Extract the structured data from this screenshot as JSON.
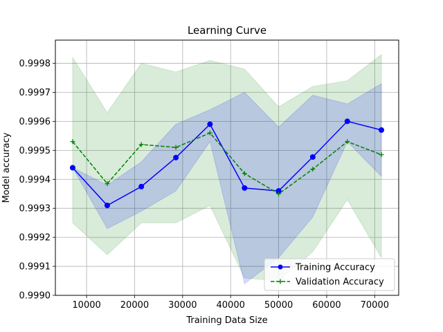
{
  "chart_data": {
    "type": "line",
    "title": "Learning Curve",
    "xlabel": "Training Data Size",
    "ylabel": "Model accuracy",
    "xlim": [
      3500,
      75000
    ],
    "ylim": [
      0.999,
      0.99988
    ],
    "xticks": [
      10000,
      20000,
      30000,
      40000,
      50000,
      60000,
      70000
    ],
    "xtick_labels": [
      "10000",
      "20000",
      "30000",
      "40000",
      "50000",
      "60000",
      "70000"
    ],
    "yticks": [
      0.999,
      0.9991,
      0.9992,
      0.9993,
      0.9994,
      0.9995,
      0.9996,
      0.9997,
      0.9998
    ],
    "ytick_labels": [
      "0.9990",
      "0.9991",
      "0.9992",
      "0.9993",
      "0.9994",
      "0.9995",
      "0.9996",
      "0.9997",
      "0.9998"
    ],
    "grid": true,
    "legend_position": "bottom-right",
    "x": [
      7100,
      14300,
      21400,
      28600,
      35700,
      42900,
      50000,
      57100,
      64300,
      71400
    ],
    "series": [
      {
        "name": "Training Accuracy",
        "color": "#0000ff",
        "line_style": "solid",
        "marker": "circle",
        "values": [
          0.99944,
          0.99931,
          0.999375,
          0.999475,
          0.99959,
          0.99937,
          0.99936,
          0.999477,
          0.9996,
          0.99957
        ],
        "band_low": [
          0.99944,
          0.99923,
          0.99929,
          0.99936,
          0.99953,
          0.99904,
          0.99913,
          0.99927,
          0.99953,
          0.99941
        ],
        "band_high": [
          0.99944,
          0.99938,
          0.99946,
          0.99959,
          0.99964,
          0.9997,
          0.99958,
          0.99969,
          0.99966,
          0.99973
        ],
        "band_color": "#0000ff"
      },
      {
        "name": "Validation Accuracy",
        "color": "#008000",
        "line_style": "dashed",
        "marker": "plus",
        "values": [
          0.99953,
          0.999385,
          0.99952,
          0.99951,
          0.99956,
          0.99942,
          0.99935,
          0.999435,
          0.99953,
          0.999485
        ],
        "band_low": [
          0.99925,
          0.99914,
          0.99925,
          0.99925,
          0.99931,
          0.99906,
          0.99905,
          0.99915,
          0.99933,
          0.99913
        ],
        "band_high": [
          0.99982,
          0.99963,
          0.9998,
          0.99977,
          0.99981,
          0.99978,
          0.99965,
          0.99972,
          0.99974,
          0.99983
        ],
        "band_color": "#008000"
      }
    ]
  }
}
